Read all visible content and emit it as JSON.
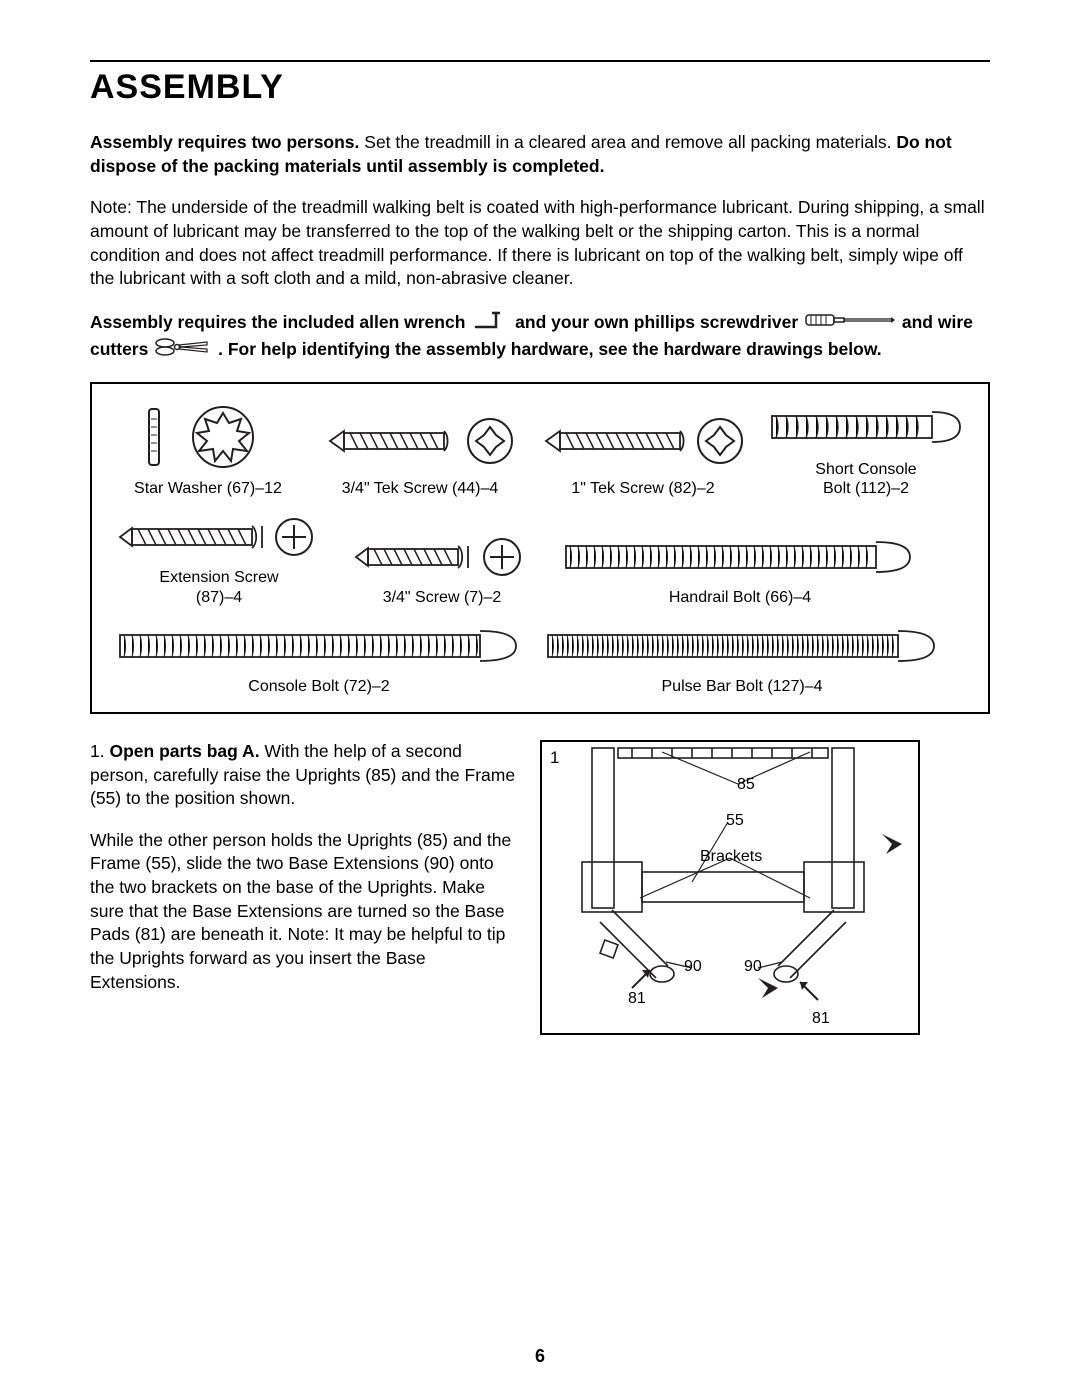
{
  "title": "ASSEMBLY",
  "page_number": "6",
  "intro_bold1": "Assembly requires two persons.",
  "intro_rest1": " Set the treadmill in a cleared area and remove all packing materials. ",
  "intro_bold2": "Do not dispose of the packing materials until assembly is completed.",
  "note_para": "Note: The underside of the treadmill walking belt is coated with high-performance lubricant. During shipping, a small amount of lubricant may be transferred to the top of the walking belt or the shipping carton. This is a normal condition and does not affect treadmill performance. If there is lubricant on top of the walking belt, simply wipe off the lubricant with a soft cloth and a mild, non-abrasive cleaner.",
  "tools_line1a": "Assembly requires the included allen wrench ",
  "tools_line1b": " and your own phillips screwdriver ",
  "tools_line1c": " and wire cutters ",
  "tools_line1d": ". For help identifying the assembly hardware, see the hardware drawings below.",
  "hardware": {
    "row1": [
      {
        "label": "Star Washer (67)–12"
      },
      {
        "label": "3/4\" Tek Screw (44)–4"
      },
      {
        "label": "1\" Tek Screw (82)–2"
      },
      {
        "label": "Short Console\nBolt (112)–2"
      }
    ],
    "row2": [
      {
        "label": "Extension Screw\n(87)–4"
      },
      {
        "label": "3/4\" Screw (7)–2"
      },
      {
        "label": "Handrail Bolt (66)–4"
      }
    ],
    "row3": [
      {
        "label": "Console Bolt (72)–2"
      },
      {
        "label": "Pulse Bar Bolt (127)–4"
      }
    ]
  },
  "step1": {
    "number": "1.",
    "bold": "Open parts bag A.",
    "p1": " With the help of a second person, carefully raise the Uprights (85) and the Frame (55) to the position shown.",
    "p2": "While the other person holds the Uprights (85) and the Frame (55), slide the two Base Extensions (90) onto the two brackets on the base of the Uprights. Make sure that the Base Extensions are turned so the Base Pads (81) are beneath it. Note: It may be helpful to tip the Uprights forward as you insert the Base Extensions."
  },
  "figure": {
    "corner": "1",
    "l85": "85",
    "l55": "55",
    "lBrackets": "Brackets",
    "l90a": "90",
    "l90b": "90",
    "l81a": "81",
    "l81b": "81"
  },
  "svg_stroke": "#231f20"
}
